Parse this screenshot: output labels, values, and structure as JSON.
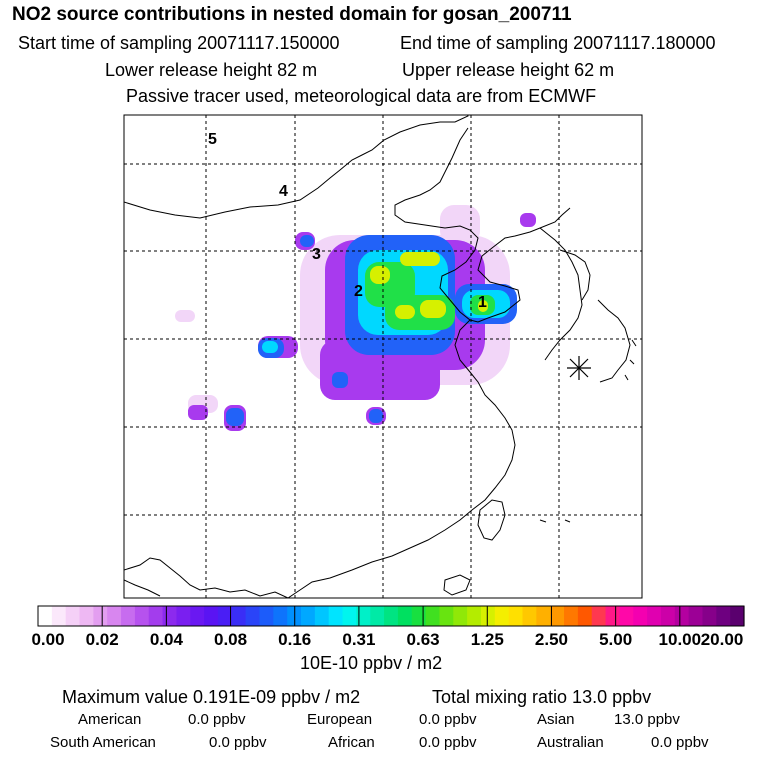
{
  "title": "NO2 source contributions in nested domain for gosan_200711",
  "start_time": "Start time of sampling 20071117.150000",
  "end_time": "End time of sampling 20071117.180000",
  "lower_height": "Lower release height   82 m",
  "upper_height": "Upper release height   62 m",
  "tracer_note": "Passive tracer used, meteorological data are from ECMWF",
  "map": {
    "labels": [
      "5",
      "4",
      "3",
      "2",
      "1"
    ]
  },
  "colorbar": {
    "ticks": [
      "0.00",
      "0.02",
      "0.04",
      "0.08",
      "0.16",
      "0.31",
      "0.63",
      "1.25",
      "2.50",
      "5.00",
      "10.00",
      "20.00"
    ],
    "colors": [
      "#ffffff",
      "#fbe8fb",
      "#f5d0f7",
      "#eeb8f3",
      "#e39ef0",
      "#d886ef",
      "#c76cef",
      "#b652ee",
      "#a33ded",
      "#8c2aee",
      "#7a1ff0",
      "#6a18f2",
      "#5a14f3",
      "#4a1ef5",
      "#3a2ef6",
      "#2a44f8",
      "#1c5cfa",
      "#0e74fc",
      "#0090fe",
      "#00a8ff",
      "#00c6ff",
      "#00e4ff",
      "#00f5ee",
      "#00f0c8",
      "#00eaa6",
      "#00e482",
      "#00e060",
      "#18e040",
      "#40e020",
      "#68e410",
      "#90e808",
      "#b4ec00",
      "#d6f000",
      "#f4ee00",
      "#ffe000",
      "#ffc800",
      "#ffb000",
      "#ff9800",
      "#ff7800",
      "#ff5800",
      "#ff3850",
      "#ff1888",
      "#ff08a8",
      "#f400b0",
      "#e000b0",
      "#cc00a8",
      "#b400a0",
      "#9c0096",
      "#86008a",
      "#6e0080",
      "#5a006e"
    ],
    "unit": "10E-10 ppbv / m2"
  },
  "stats": {
    "max_value": "Maximum value  0.191E-09 ppbv / m2",
    "total_mixing": "Total mixing ratio      13.0 ppbv",
    "american": "American",
    "american_val": "0.0 ppbv",
    "european": "European",
    "european_val": "0.0 ppbv",
    "asian": "Asian",
    "asian_val": "13.0 ppbv",
    "south_american": "South American",
    "south_american_val": "0.0 ppbv",
    "african": "African",
    "african_val": "0.0 ppbv",
    "australian": "Australian",
    "australian_val": "0.0 ppbv"
  }
}
